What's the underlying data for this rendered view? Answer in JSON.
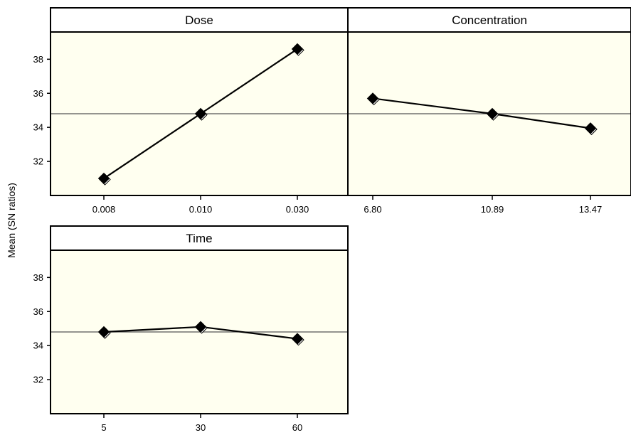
{
  "chart_data": {
    "type": "line",
    "ylabel": "Mean (SN ratios)",
    "ylim": [
      30,
      39.6
    ],
    "yticks": [
      "32",
      "34",
      "36",
      "38"
    ],
    "reference_mean": 34.8,
    "panels": [
      {
        "title": "Dose",
        "categories": [
          "0.008",
          "0.010",
          "0.030"
        ],
        "values": [
          31.0,
          34.8,
          38.6
        ]
      },
      {
        "title": "Concentration",
        "categories": [
          "6.80",
          "10.89",
          "13.47"
        ],
        "values": [
          35.7,
          34.8,
          33.95
        ]
      },
      {
        "title": "Time",
        "categories": [
          "5",
          "30",
          "60"
        ],
        "values": [
          34.8,
          35.1,
          34.4
        ]
      }
    ]
  }
}
